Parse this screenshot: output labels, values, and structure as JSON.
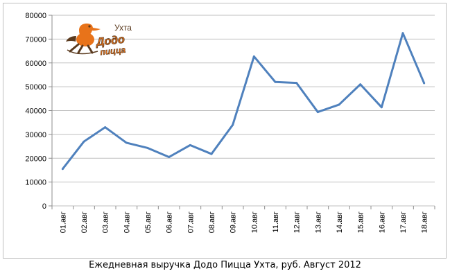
{
  "chart_data": {
    "type": "line",
    "categories": [
      "01.авг",
      "02.авг",
      "03.авг",
      "04.авг",
      "05.авг",
      "06.авг",
      "07.авг",
      "08.авг",
      "09.авг",
      "10.авг",
      "11.авг",
      "12.авг",
      "13.авг",
      "14.авг",
      "15.авг",
      "16.авг",
      "17.авг",
      "18.авг"
    ],
    "series": [
      {
        "values": [
          15500,
          27000,
          33000,
          26500,
          24300,
          20500,
          25500,
          21800,
          34000,
          62700,
          52000,
          51600,
          39400,
          42500,
          51000,
          41400,
          72500,
          51500
        ]
      }
    ],
    "ylim": [
      0,
      80000
    ],
    "yticks": [
      0,
      10000,
      20000,
      30000,
      40000,
      50000,
      60000,
      70000,
      80000
    ],
    "grid": true,
    "legend": "none",
    "line_color": "#4f81bd",
    "title": "Ежедневная выручка Додо Пицца Ухта, руб.  Август 2012"
  },
  "logo": {
    "text_city": "Ухта",
    "text_brand": "Додо Пицца",
    "colors": {
      "brand": "#e8731a",
      "dark": "#5a3a1e"
    }
  }
}
